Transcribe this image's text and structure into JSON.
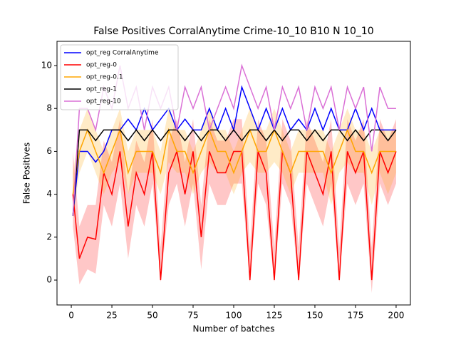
{
  "chart_data": {
    "type": "line",
    "title": "False Positives CorralAnytime Crime-10_10 B10 N 10_10",
    "x_label": "Number of batches",
    "y_label": "False Positives",
    "x": [
      1,
      5,
      10,
      15,
      20,
      25,
      30,
      35,
      40,
      45,
      50,
      55,
      60,
      65,
      70,
      75,
      80,
      85,
      90,
      95,
      100,
      105,
      110,
      115,
      120,
      125,
      130,
      135,
      140,
      145,
      150,
      155,
      160,
      165,
      170,
      175,
      180,
      185,
      190,
      195,
      200
    ],
    "xlim": [
      -8.8,
      208.8
    ],
    "ylim": [
      -1.16,
      11.13
    ],
    "xticks": [
      0,
      25,
      50,
      75,
      100,
      125,
      150,
      175,
      200
    ],
    "yticks": [
      0,
      2,
      4,
      6,
      8,
      10
    ],
    "legend": "upper left",
    "series": [
      {
        "name": "opt_reg CorralAnytime",
        "color": "#0000ff",
        "values": [
          3,
          6,
          6,
          5.5,
          6,
          7,
          7,
          7.5,
          7,
          8,
          7,
          7.5,
          8,
          7,
          7.5,
          7,
          7,
          8,
          7,
          8,
          7,
          9,
          8,
          7,
          8,
          7,
          8,
          7,
          7.5,
          7,
          8,
          7,
          8,
          7,
          7,
          8,
          7,
          8,
          7,
          7,
          7
        ]
      },
      {
        "name": "opt_reg-0",
        "color": "#ff0000",
        "values": [
          4,
          1,
          2,
          1.9,
          5,
          4,
          6,
          2.5,
          5,
          4,
          6,
          0,
          5,
          6,
          4,
          6,
          2,
          6,
          5,
          5,
          6,
          6,
          0,
          6,
          5,
          0,
          6,
          5,
          0,
          6,
          5,
          4,
          6,
          0,
          6,
          5,
          6,
          0,
          6,
          5,
          6
        ],
        "lower": [
          2.5,
          -0.2,
          0.5,
          0.3,
          3.5,
          2.5,
          4.5,
          1,
          3.5,
          2.5,
          4.5,
          -0.1,
          3.5,
          4.5,
          2.5,
          4.5,
          0.5,
          4.5,
          3.5,
          3.5,
          4.5,
          4.5,
          -0.1,
          4.5,
          3.5,
          -0.1,
          4.5,
          3.5,
          -0.1,
          4.5,
          3.5,
          2.5,
          4.5,
          -0.1,
          4.5,
          3.5,
          4.5,
          -0.6,
          4.5,
          3.5,
          4.5
        ],
        "upper": [
          6,
          2.5,
          3.5,
          3.5,
          6.5,
          5.5,
          7.5,
          4,
          6.5,
          5.5,
          7.5,
          1.5,
          6.5,
          7.5,
          5.5,
          7.5,
          3.5,
          7.5,
          6.5,
          6.5,
          7.5,
          7.5,
          1.5,
          7.5,
          6.5,
          1.5,
          7.5,
          6.5,
          1.5,
          7.5,
          6.5,
          5.5,
          7.5,
          1.5,
          7.5,
          6.5,
          7.5,
          1.5,
          7.5,
          6.5,
          7.5
        ]
      },
      {
        "name": "opt_reg-0.1",
        "color": "#ffa500",
        "values": [
          4,
          6,
          7,
          6,
          5,
          6,
          7,
          5,
          6,
          6,
          6,
          5,
          7,
          6,
          6,
          5,
          6,
          7,
          6,
          6,
          5,
          6,
          7,
          6,
          6,
          7,
          6,
          5,
          6,
          6,
          6,
          6,
          5,
          6,
          7,
          6,
          6,
          5,
          6,
          6,
          6
        ],
        "lower": [
          3,
          5,
          6,
          5,
          4,
          5,
          5.5,
          4,
          5,
          5,
          5,
          4,
          5.5,
          5,
          5,
          4,
          5,
          5.5,
          5,
          5,
          4,
          5,
          5.5,
          5,
          5,
          5.5,
          5,
          4,
          5,
          5,
          5,
          5,
          3.5,
          5,
          5.5,
          5,
          5,
          3.5,
          5,
          4,
          5
        ],
        "upper": [
          5,
          7,
          8,
          7,
          6,
          7,
          8,
          6,
          7,
          7,
          7,
          6,
          8,
          7,
          7,
          6,
          7,
          8,
          7,
          7,
          6,
          7,
          8,
          7,
          7,
          8,
          7,
          6,
          7,
          7,
          7,
          7,
          6,
          7,
          8,
          7,
          7,
          6,
          7,
          7,
          7
        ]
      },
      {
        "name": "opt_reg-1",
        "color": "#000000",
        "values": [
          3,
          7,
          7,
          6.5,
          7,
          7,
          7,
          6.5,
          7,
          6.5,
          7,
          6.5,
          7,
          7,
          6.5,
          7,
          6.5,
          7,
          7,
          6.5,
          7,
          6.5,
          7,
          7,
          6.5,
          7,
          6.5,
          7,
          7,
          6.5,
          7,
          6.5,
          7,
          7,
          6.5,
          7,
          6.5,
          7,
          7,
          6.5,
          7
        ]
      },
      {
        "name": "opt_reg-10",
        "color": "#da70d6",
        "values": [
          3,
          8,
          8,
          7,
          9,
          8,
          10,
          8,
          9,
          7,
          9,
          8,
          9,
          7,
          9,
          8,
          9,
          7,
          8,
          9,
          8,
          10,
          9,
          8,
          9,
          7,
          9,
          8,
          9,
          7,
          9,
          8,
          9,
          7,
          9,
          8,
          9,
          6,
          9,
          8,
          8
        ]
      }
    ]
  }
}
